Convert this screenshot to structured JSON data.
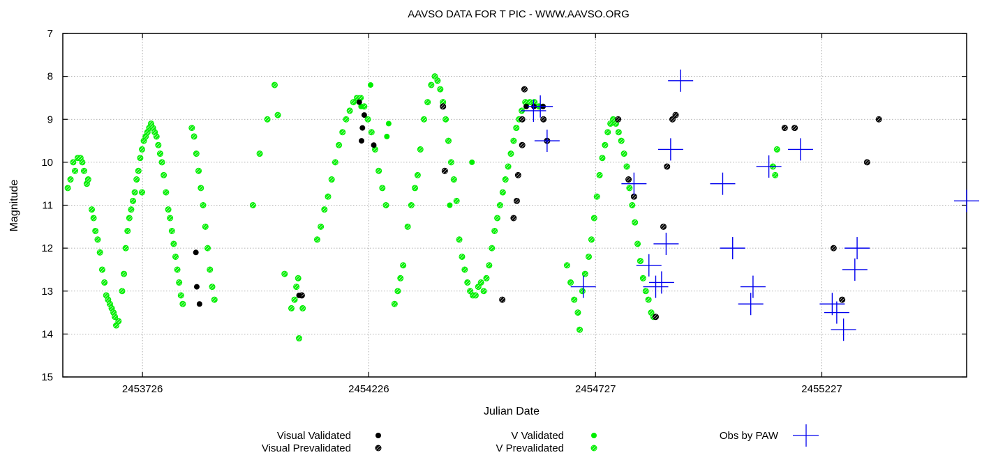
{
  "chart_data": {
    "type": "scatter",
    "title": "AAVSO DATA FOR T PIC - WWW.AAVSO.ORG",
    "xlabel": "Julian Date",
    "ylabel": "Magnitude",
    "xlim": [
      2453550,
      2455547
    ],
    "ylim": [
      15,
      7
    ],
    "y_inverted": true,
    "grid": true,
    "legend_position": "bottom",
    "x_ticks": [
      2453726,
      2454226,
      2454727,
      2455227
    ],
    "y_ticks": [
      7,
      8,
      9,
      10,
      11,
      12,
      13,
      14,
      15
    ],
    "colors": {
      "visual": "#000000",
      "v_band": "#00ee00",
      "paw": "#0000ee"
    },
    "series": [
      {
        "name": "Visual Validated",
        "marker": "filled-circle",
        "color": "#000000",
        "points": [
          [
            2453844,
            12.1
          ],
          [
            2453846,
            12.9
          ],
          [
            2453852,
            13.3
          ],
          [
            2454072,
            13.1
          ],
          [
            2454205,
            8.6
          ],
          [
            2454212,
            9.2
          ],
          [
            2454210,
            9.5
          ],
          [
            2454216,
            8.9
          ],
          [
            2454237,
            9.6
          ],
          [
            2454574,
            8.7
          ],
          [
            2454591,
            8.7
          ],
          [
            2454611,
            8.7
          ]
        ]
      },
      {
        "name": "Visual Prevalidated",
        "marker": "hatched-circle",
        "color": "#000000",
        "points": [
          [
            2454078,
            13.1
          ],
          [
            2454390,
            8.7
          ],
          [
            2454394,
            10.2
          ],
          [
            2454521,
            13.2
          ],
          [
            2454570,
            8.3
          ],
          [
            2454565,
            9.0
          ],
          [
            2454565,
            9.6
          ],
          [
            2454556,
            10.3
          ],
          [
            2454553,
            10.9
          ],
          [
            2454546,
            11.3
          ],
          [
            2454612,
            9.0
          ],
          [
            2454620,
            9.5
          ],
          [
            2454777,
            9.0
          ],
          [
            2454800,
            10.4
          ],
          [
            2454812,
            10.8
          ],
          [
            2454860,
            13.6
          ],
          [
            2454877,
            11.5
          ],
          [
            2454885,
            10.1
          ],
          [
            2454897,
            9.0
          ],
          [
            2454904,
            8.9
          ],
          [
            2455145,
            9.2
          ],
          [
            2455167,
            9.2
          ],
          [
            2455253,
            12.0
          ],
          [
            2455272,
            13.2
          ],
          [
            2455327,
            10.0
          ],
          [
            2455353,
            9.0
          ]
        ]
      },
      {
        "name": "V Validated",
        "marker": "filled-circle",
        "color": "#00ee00",
        "points": [
          [
            2454209,
            8.7
          ],
          [
            2454230,
            8.2
          ],
          [
            2454266,
            9.4
          ],
          [
            2454270,
            9.1
          ],
          [
            2454405,
            11.0
          ],
          [
            2454454,
            10.0
          ],
          [
            2454604,
            8.7
          ]
        ]
      },
      {
        "name": "V Prevalidated",
        "marker": "hatched-circle",
        "color": "#00ee00",
        "points": [
          [
            2453561,
            10.6
          ],
          [
            2453567,
            10.4
          ],
          [
            2453573,
            10.0
          ],
          [
            2453577,
            10.2
          ],
          [
            2453583,
            9.9
          ],
          [
            2453589,
            9.9
          ],
          [
            2453593,
            10.0
          ],
          [
            2453597,
            10.2
          ],
          [
            2453603,
            10.5
          ],
          [
            2453606,
            10.4
          ],
          [
            2453614,
            11.1
          ],
          [
            2453618,
            11.3
          ],
          [
            2453622,
            11.6
          ],
          [
            2453627,
            11.8
          ],
          [
            2453632,
            12.1
          ],
          [
            2453637,
            12.5
          ],
          [
            2453642,
            12.8
          ],
          [
            2453646,
            13.1
          ],
          [
            2453650,
            13.2
          ],
          [
            2453654,
            13.3
          ],
          [
            2453658,
            13.4
          ],
          [
            2453662,
            13.5
          ],
          [
            2453668,
            13.8
          ],
          [
            2453673,
            13.7
          ],
          [
            2453681,
            13.0
          ],
          [
            2453685,
            12.6
          ],
          [
            2453689,
            12.0
          ],
          [
            2453693,
            11.6
          ],
          [
            2453697,
            11.3
          ],
          [
            2453701,
            11.1
          ],
          [
            2453705,
            10.9
          ],
          [
            2453709,
            10.7
          ],
          [
            2453713,
            10.4
          ],
          [
            2453717,
            10.2
          ],
          [
            2453721,
            9.9
          ],
          [
            2453725,
            9.7
          ],
          [
            2453729,
            9.5
          ],
          [
            2453733,
            9.4
          ],
          [
            2453737,
            9.3
          ],
          [
            2453741,
            9.2
          ],
          [
            2453745,
            9.1
          ],
          [
            2453749,
            9.2
          ],
          [
            2453753,
            9.3
          ],
          [
            2453757,
            9.4
          ],
          [
            2453761,
            9.6
          ],
          [
            2453765,
            9.8
          ],
          [
            2453769,
            10.0
          ],
          [
            2453773,
            10.3
          ],
          [
            2453778,
            10.7
          ],
          [
            2453783,
            11.1
          ],
          [
            2453787,
            11.3
          ],
          [
            2453791,
            11.6
          ],
          [
            2453795,
            11.9
          ],
          [
            2453799,
            12.2
          ],
          [
            2453803,
            12.5
          ],
          [
            2453807,
            12.8
          ],
          [
            2453811,
            13.1
          ],
          [
            2453815,
            13.3
          ],
          [
            2453835,
            9.2
          ],
          [
            2453840,
            9.4
          ],
          [
            2453845,
            9.8
          ],
          [
            2453850,
            10.2
          ],
          [
            2453855,
            10.6
          ],
          [
            2453860,
            11.0
          ],
          [
            2453865,
            11.5
          ],
          [
            2453870,
            12.0
          ],
          [
            2453875,
            12.5
          ],
          [
            2453880,
            12.9
          ],
          [
            2453885,
            13.2
          ],
          [
            2453725,
            10.7
          ],
          [
            2453665,
            13.6
          ],
          [
            2453970,
            11.0
          ],
          [
            2453985,
            9.8
          ],
          [
            2454002,
            9.0
          ],
          [
            2454018,
            8.2
          ],
          [
            2454025,
            8.9
          ],
          [
            2454040,
            12.6
          ],
          [
            2454055,
            13.4
          ],
          [
            2454062,
            13.2
          ],
          [
            2454066,
            12.9
          ],
          [
            2454070,
            12.7
          ],
          [
            2454072,
            14.1
          ],
          [
            2454080,
            13.4
          ],
          [
            2454112,
            11.8
          ],
          [
            2454120,
            11.5
          ],
          [
            2454128,
            11.1
          ],
          [
            2454136,
            10.8
          ],
          [
            2454144,
            10.4
          ],
          [
            2454152,
            10.0
          ],
          [
            2454160,
            9.6
          ],
          [
            2454168,
            9.3
          ],
          [
            2454176,
            9.0
          ],
          [
            2454184,
            8.8
          ],
          [
            2454192,
            8.6
          ],
          [
            2454200,
            8.5
          ],
          [
            2454208,
            8.5
          ],
          [
            2454216,
            8.7
          ],
          [
            2454224,
            9.0
          ],
          [
            2454232,
            9.3
          ],
          [
            2454240,
            9.7
          ],
          [
            2454248,
            10.2
          ],
          [
            2454256,
            10.6
          ],
          [
            2454264,
            11.0
          ],
          [
            2454283,
            13.3
          ],
          [
            2454290,
            13.0
          ],
          [
            2454296,
            12.7
          ],
          [
            2454302,
            12.4
          ],
          [
            2454312,
            11.5
          ],
          [
            2454320,
            11.0
          ],
          [
            2454328,
            10.6
          ],
          [
            2454334,
            10.3
          ],
          [
            2454340,
            9.7
          ],
          [
            2454348,
            9.0
          ],
          [
            2454356,
            8.6
          ],
          [
            2454364,
            8.2
          ],
          [
            2454372,
            8.0
          ],
          [
            2454378,
            8.1
          ],
          [
            2454384,
            8.3
          ],
          [
            2454390,
            8.6
          ],
          [
            2454396,
            9.0
          ],
          [
            2454402,
            9.5
          ],
          [
            2454408,
            10.0
          ],
          [
            2454414,
            10.4
          ],
          [
            2454420,
            10.9
          ],
          [
            2454426,
            11.8
          ],
          [
            2454432,
            12.2
          ],
          [
            2454438,
            12.5
          ],
          [
            2454444,
            12.8
          ],
          [
            2454450,
            13.0
          ],
          [
            2454456,
            13.1
          ],
          [
            2454462,
            13.1
          ],
          [
            2454468,
            12.9
          ],
          [
            2454474,
            12.8
          ],
          [
            2454480,
            13.0
          ],
          [
            2454486,
            12.7
          ],
          [
            2454492,
            12.4
          ],
          [
            2454498,
            12.0
          ],
          [
            2454504,
            11.6
          ],
          [
            2454510,
            11.3
          ],
          [
            2454516,
            11.0
          ],
          [
            2454522,
            10.7
          ],
          [
            2454528,
            10.4
          ],
          [
            2454534,
            10.1
          ],
          [
            2454540,
            9.8
          ],
          [
            2454546,
            9.5
          ],
          [
            2454552,
            9.2
          ],
          [
            2454558,
            9.0
          ],
          [
            2454564,
            8.8
          ],
          [
            2454572,
            8.6
          ],
          [
            2454582,
            8.6
          ],
          [
            2454592,
            8.6
          ],
          [
            2454602,
            8.7
          ],
          [
            2454664,
            12.4
          ],
          [
            2454672,
            12.8
          ],
          [
            2454680,
            13.2
          ],
          [
            2454688,
            13.5
          ],
          [
            2454692,
            13.9
          ],
          [
            2454698,
            13.0
          ],
          [
            2454704,
            12.6
          ],
          [
            2454712,
            12.2
          ],
          [
            2454718,
            11.8
          ],
          [
            2454724,
            11.3
          ],
          [
            2454730,
            10.8
          ],
          [
            2454736,
            10.3
          ],
          [
            2454742,
            9.9
          ],
          [
            2454748,
            9.6
          ],
          [
            2454754,
            9.3
          ],
          [
            2454760,
            9.1
          ],
          [
            2454766,
            9.0
          ],
          [
            2454772,
            9.1
          ],
          [
            2454778,
            9.3
          ],
          [
            2454784,
            9.5
          ],
          [
            2454790,
            9.8
          ],
          [
            2454796,
            10.1
          ],
          [
            2454802,
            10.6
          ],
          [
            2454808,
            11.0
          ],
          [
            2454814,
            11.4
          ],
          [
            2454820,
            11.9
          ],
          [
            2454826,
            12.3
          ],
          [
            2454832,
            12.7
          ],
          [
            2454838,
            13.0
          ],
          [
            2454844,
            13.2
          ],
          [
            2454850,
            13.5
          ],
          [
            2454855,
            13.6
          ],
          [
            2455119,
            10.1
          ],
          [
            2455124,
            10.3
          ],
          [
            2455128,
            9.7
          ]
        ]
      },
      {
        "name": "Obs by PAW",
        "marker": "cross",
        "color": "#0000ee",
        "points": [
          [
            2454590,
            8.8
          ],
          [
            2454605,
            8.7
          ],
          [
            2454620,
            9.5
          ],
          [
            2454700,
            12.9
          ],
          [
            2454812,
            10.5
          ],
          [
            2454845,
            12.4
          ],
          [
            2454860,
            12.9
          ],
          [
            2454873,
            12.8
          ],
          [
            2454883,
            11.9
          ],
          [
            2454893,
            9.7
          ],
          [
            2454915,
            8.1
          ],
          [
            2455008,
            10.5
          ],
          [
            2455030,
            12.0
          ],
          [
            2455070,
            13.3
          ],
          [
            2455075,
            12.9
          ],
          [
            2455110,
            10.1
          ],
          [
            2455180,
            9.7
          ],
          [
            2455250,
            13.3
          ],
          [
            2455260,
            13.5
          ],
          [
            2455275,
            13.9
          ],
          [
            2455300,
            12.5
          ],
          [
            2455305,
            12.0
          ],
          [
            2455547,
            10.9
          ]
        ]
      }
    ]
  }
}
